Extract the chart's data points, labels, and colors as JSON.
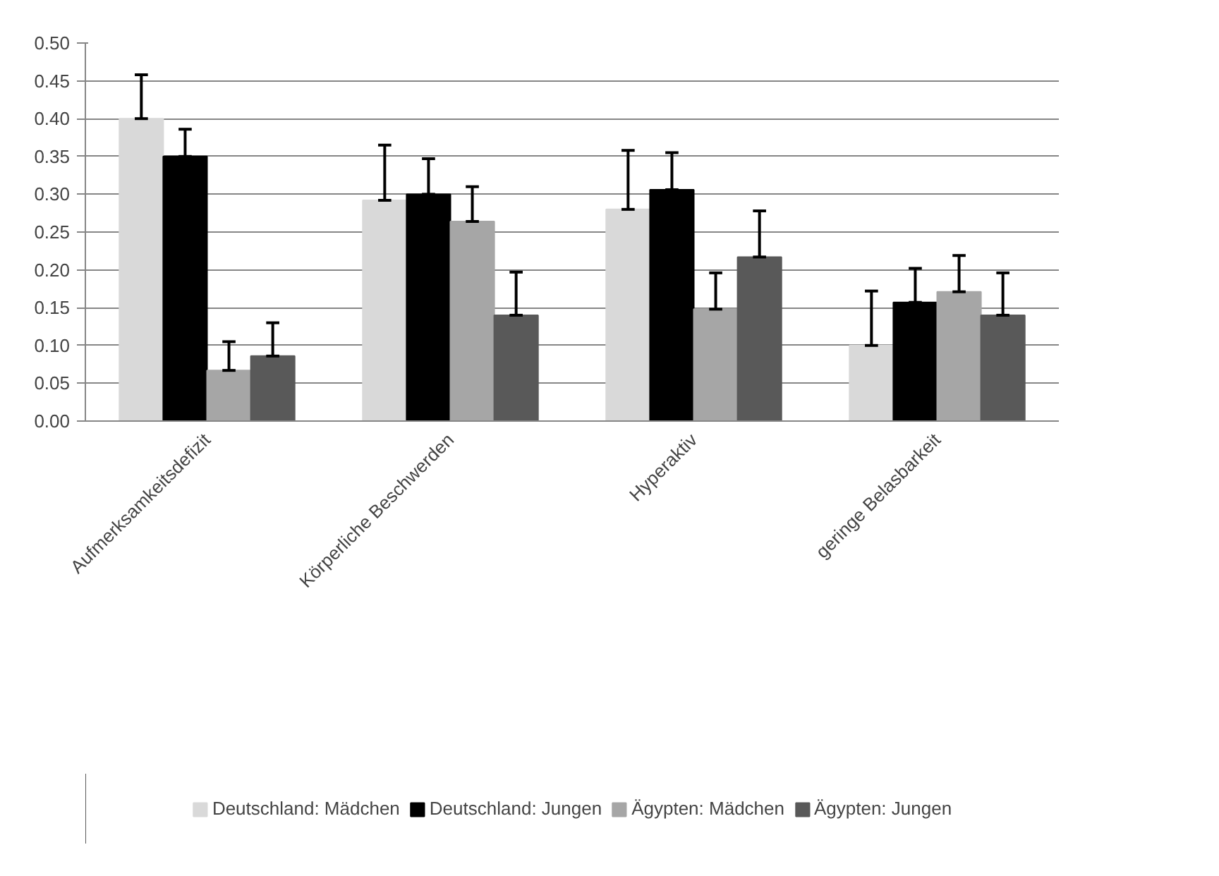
{
  "chart_data": {
    "type": "bar",
    "categories": [
      "Aufmerksamkeitsdefizit",
      "Körperliche Beschwerden",
      "Hyperaktiv",
      "geringe Belasbarkeit"
    ],
    "series": [
      {
        "name": "Deutschland: Mädchen",
        "color": "#d9d9d9",
        "values": [
          0.4,
          0.292,
          0.28,
          0.1
        ],
        "errors": [
          [
            0.4,
            0.458
          ],
          [
            0.292,
            0.365
          ],
          [
            0.28,
            0.358
          ],
          [
            0.1,
            0.172
          ]
        ]
      },
      {
        "name": "Deutschland: Jungen",
        "color": "#000000",
        "values": [
          0.35,
          0.3,
          0.306,
          0.157
        ],
        "errors": [
          [
            0.35,
            0.386
          ],
          [
            0.3,
            0.347
          ],
          [
            0.306,
            0.355
          ],
          [
            0.157,
            0.202
          ]
        ]
      },
      {
        "name": "Ägypten: Mädchen",
        "color": "#a6a6a6",
        "values": [
          0.067,
          0.264,
          0.148,
          0.171
        ],
        "errors": [
          [
            0.067,
            0.105
          ],
          [
            0.264,
            0.31
          ],
          [
            0.148,
            0.196
          ],
          [
            0.171,
            0.219
          ]
        ]
      },
      {
        "name": "Ägypten: Jungen",
        "color": "#595959",
        "values": [
          0.086,
          0.14,
          0.217,
          0.14
        ],
        "errors": [
          [
            0.086,
            0.13
          ],
          [
            0.14,
            0.197
          ],
          [
            0.217,
            0.278
          ],
          [
            0.14,
            0.196
          ]
        ]
      }
    ],
    "ylim": [
      0,
      0.5
    ],
    "yticks": [
      {
        "value": 0,
        "label": "0.00"
      },
      {
        "value": 0.05,
        "label": "0.05"
      },
      {
        "value": 0.1,
        "label": "0.10"
      },
      {
        "value": 0.15,
        "label": "0.15"
      },
      {
        "value": 0.2,
        "label": "0.20"
      },
      {
        "value": 0.25,
        "label": "0.25"
      },
      {
        "value": 0.3,
        "label": "0.30"
      },
      {
        "value": 0.35,
        "label": "0.35"
      },
      {
        "value": 0.4,
        "label": "0.40"
      },
      {
        "value": 0.45,
        "label": "0.45"
      },
      {
        "value": 0.5,
        "label": "0.50"
      }
    ],
    "grid": "y",
    "legend": "bottom"
  }
}
